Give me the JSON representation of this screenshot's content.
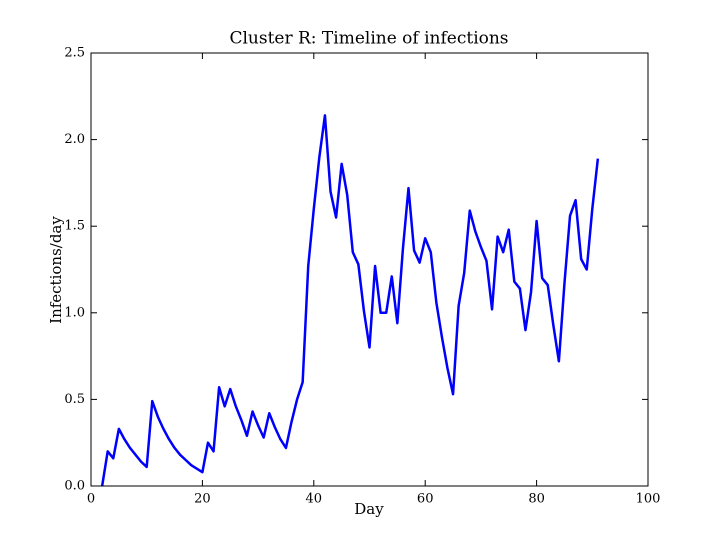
{
  "chart_data": {
    "type": "line",
    "title": "Cluster R: Timeline of infections",
    "xlabel": "Day",
    "ylabel": "Infections/day",
    "x": [
      2,
      3,
      4,
      5,
      6,
      7,
      8,
      9,
      10,
      11,
      12,
      13,
      14,
      15,
      16,
      17,
      18,
      19,
      20,
      21,
      22,
      23,
      24,
      25,
      26,
      27,
      28,
      29,
      30,
      31,
      32,
      33,
      34,
      35,
      36,
      37,
      38,
      39,
      40,
      41,
      42,
      43,
      44,
      45,
      46,
      47,
      48,
      49,
      50,
      51,
      52,
      53,
      54,
      55,
      56,
      57,
      58,
      59,
      60,
      61,
      62,
      63,
      64,
      65,
      66,
      67,
      68,
      69,
      70,
      71,
      72,
      73,
      74,
      75,
      76,
      77,
      78,
      79,
      80,
      81,
      82,
      83,
      84,
      85,
      86,
      87,
      88,
      89,
      90,
      91
    ],
    "series": [
      {
        "name": "Infections/day",
        "color": "#0000ff",
        "values": [
          0,
          0.2,
          0.16,
          0.33,
          0.27,
          0.22,
          0.18,
          0.14,
          0.11,
          0.49,
          0.4,
          0.33,
          0.27,
          0.22,
          0.18,
          0.15,
          0.12,
          0.1,
          0.08,
          0.25,
          0.2,
          0.57,
          0.46,
          0.56,
          0.46,
          0.38,
          0.29,
          0.43,
          0.35,
          0.28,
          0.42,
          0.34,
          0.27,
          0.22,
          0.37,
          0.5,
          0.6,
          1.27,
          1.6,
          1.9,
          2.14,
          1.7,
          1.55,
          1.86,
          1.68,
          1.35,
          1.28,
          1.01,
          0.8,
          1.27,
          1.0,
          1.0,
          1.21,
          0.94,
          1.37,
          1.72,
          1.36,
          1.29,
          1.43,
          1.35,
          1.06,
          0.86,
          0.68,
          0.53,
          1.04,
          1.23,
          1.59,
          1.47,
          1.38,
          1.3,
          1.02,
          1.44,
          1.35,
          1.48,
          1.18,
          1.14,
          0.9,
          1.12,
          1.53,
          1.2,
          1.16,
          0.93,
          0.72,
          1.17,
          1.56,
          1.65,
          1.31,
          1.25,
          1.6,
          1.89
        ]
      }
    ],
    "xlim": [
      0,
      100
    ],
    "xticks": [
      0,
      20,
      40,
      60,
      80,
      100
    ],
    "ylim": [
      0,
      2.5
    ],
    "yticks": [
      {
        "value": 0,
        "label": "0.0"
      },
      0.5,
      {
        "value": 1,
        "label": "1.0"
      },
      1.5,
      {
        "value": 2,
        "label": "2.0"
      },
      2.5
    ]
  }
}
